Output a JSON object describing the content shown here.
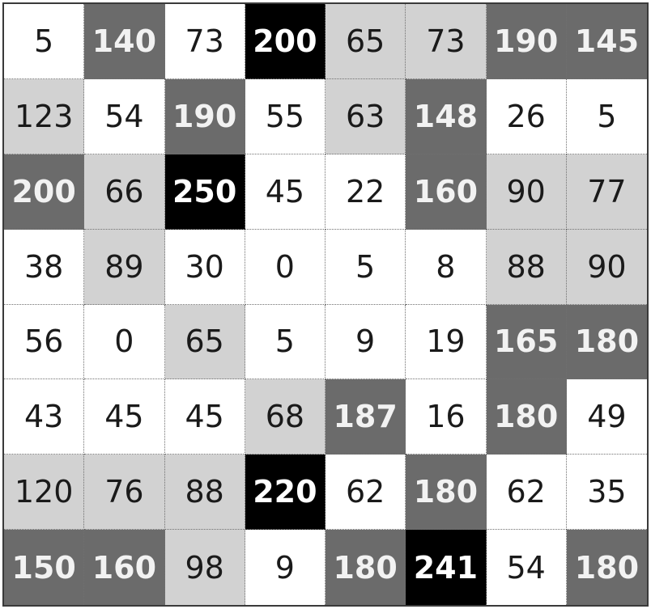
{
  "grid": {
    "rows": 8,
    "cols": 8,
    "values": [
      [
        5,
        140,
        73,
        200,
        65,
        73,
        190,
        145
      ],
      [
        123,
        54,
        190,
        55,
        63,
        148,
        26,
        5
      ],
      [
        200,
        66,
        250,
        45,
        22,
        160,
        90,
        77
      ],
      [
        38,
        89,
        30,
        0,
        5,
        8,
        88,
        90
      ],
      [
        56,
        0,
        65,
        5,
        9,
        19,
        165,
        180
      ],
      [
        43,
        45,
        45,
        68,
        187,
        16,
        180,
        49
      ],
      [
        120,
        76,
        88,
        220,
        62,
        180,
        62,
        35
      ],
      [
        150,
        160,
        98,
        9,
        180,
        241,
        54,
        180
      ]
    ],
    "shades": [
      [
        0,
        2,
        0,
        3,
        1,
        1,
        2,
        2
      ],
      [
        1,
        0,
        2,
        0,
        1,
        2,
        0,
        0
      ],
      [
        2,
        1,
        3,
        0,
        0,
        2,
        1,
        1
      ],
      [
        0,
        1,
        0,
        0,
        0,
        0,
        1,
        1
      ],
      [
        0,
        0,
        1,
        0,
        0,
        0,
        2,
        2
      ],
      [
        0,
        0,
        0,
        1,
        2,
        0,
        2,
        0
      ],
      [
        1,
        1,
        1,
        3,
        0,
        2,
        0,
        0
      ],
      [
        2,
        2,
        1,
        0,
        2,
        3,
        0,
        2
      ]
    ],
    "shade_colors": [
      "#ffffff",
      "#d2d2d2",
      "#6b6b6b",
      "#000000"
    ]
  }
}
